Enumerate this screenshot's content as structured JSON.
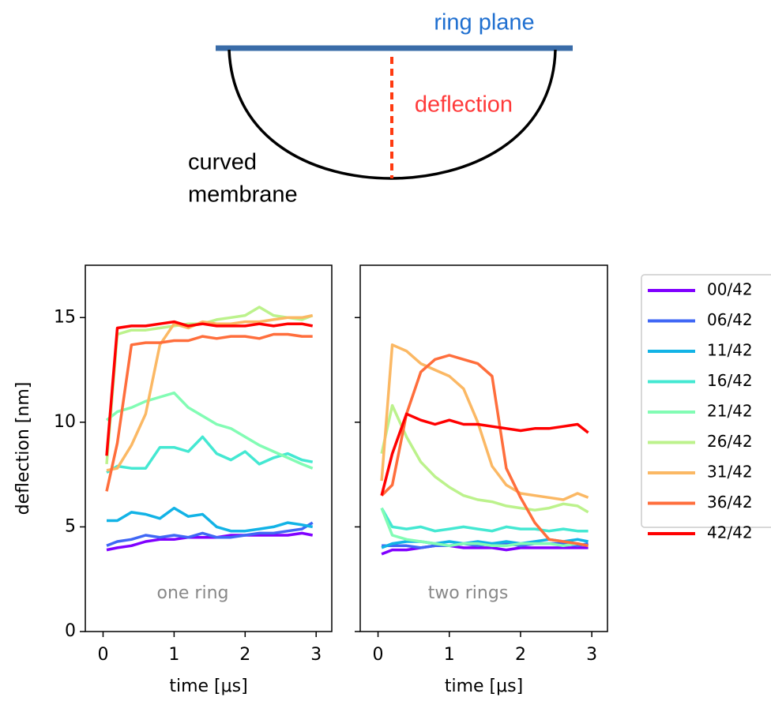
{
  "diagram": {
    "plane_label": "ring plane",
    "deflection_label": "deflection",
    "membrane_label": [
      "curved",
      "membrane"
    ]
  },
  "chart_data": [
    {
      "type": "line",
      "annotation": "one ring",
      "xlabel": "time [μs]",
      "ylabel": "deflection [nm]",
      "xlim": [
        -0.25,
        3.22
      ],
      "xticks": [
        0,
        1,
        2,
        3
      ],
      "ylim": [
        0,
        17.5
      ],
      "yticks": [
        0,
        5,
        10,
        15
      ],
      "legend": "outside-right",
      "x": [
        0.05,
        0.2,
        0.4,
        0.6,
        0.8,
        1.0,
        1.2,
        1.4,
        1.6,
        1.8,
        2.0,
        2.2,
        2.4,
        2.6,
        2.8,
        2.95
      ],
      "series": [
        {
          "name": "00/42",
          "color": "#8000ff",
          "values": [
            3.9,
            4.0,
            4.1,
            4.3,
            4.4,
            4.4,
            4.5,
            4.5,
            4.5,
            4.6,
            4.6,
            4.6,
            4.6,
            4.6,
            4.7,
            4.6
          ]
        },
        {
          "name": "06/42",
          "color": "#3f67f5",
          "values": [
            4.1,
            4.3,
            4.4,
            4.6,
            4.5,
            4.6,
            4.5,
            4.7,
            4.5,
            4.5,
            4.6,
            4.7,
            4.7,
            4.8,
            4.9,
            5.2
          ]
        },
        {
          "name": "11/42",
          "color": "#12b3e6",
          "values": [
            5.3,
            5.3,
            5.7,
            5.6,
            5.4,
            5.9,
            5.5,
            5.6,
            5.0,
            4.8,
            4.8,
            4.9,
            5.0,
            5.2,
            5.1,
            5.0
          ]
        },
        {
          "name": "16/42",
          "color": "#44e8d2",
          "values": [
            7.6,
            7.9,
            7.8,
            7.8,
            8.8,
            8.8,
            8.6,
            9.3,
            8.5,
            8.2,
            8.6,
            8.0,
            8.3,
            8.5,
            8.2,
            8.1
          ]
        },
        {
          "name": "21/42",
          "color": "#82fcb4",
          "values": [
            10.1,
            10.5,
            10.7,
            11.0,
            11.2,
            11.4,
            10.7,
            10.3,
            9.9,
            9.7,
            9.3,
            8.9,
            8.6,
            8.3,
            8.0,
            7.8
          ]
        },
        {
          "name": "26/42",
          "color": "#bcf28c",
          "values": [
            8.0,
            14.2,
            14.4,
            14.4,
            14.5,
            14.6,
            14.7,
            14.7,
            14.9,
            15.0,
            15.1,
            15.5,
            15.1,
            15.0,
            14.9,
            15.1
          ]
        },
        {
          "name": "31/42",
          "color": "#fbb864",
          "values": [
            7.7,
            7.8,
            8.9,
            10.4,
            13.7,
            14.7,
            14.5,
            14.8,
            14.7,
            14.7,
            14.8,
            14.8,
            14.9,
            15.0,
            15.0,
            15.1
          ]
        },
        {
          "name": "36/42",
          "color": "#ff6e3c",
          "values": [
            6.7,
            9.0,
            13.7,
            13.8,
            13.8,
            13.9,
            13.9,
            14.1,
            14.0,
            14.1,
            14.1,
            14.0,
            14.2,
            14.2,
            14.1,
            14.1
          ]
        },
        {
          "name": "42/42",
          "color": "#ff0000",
          "values": [
            8.4,
            14.5,
            14.6,
            14.6,
            14.7,
            14.8,
            14.6,
            14.7,
            14.6,
            14.6,
            14.6,
            14.7,
            14.6,
            14.7,
            14.7,
            14.6
          ]
        }
      ]
    },
    {
      "type": "line",
      "annotation": "two rings",
      "xlabel": "time [μs]",
      "xlim": [
        -0.25,
        3.22
      ],
      "xticks": [
        0,
        1,
        2,
        3
      ],
      "ylim": [
        0,
        17.5
      ],
      "x": [
        0.05,
        0.2,
        0.4,
        0.6,
        0.8,
        1.0,
        1.2,
        1.4,
        1.6,
        1.8,
        2.0,
        2.2,
        2.4,
        2.6,
        2.8,
        2.95
      ],
      "series": [
        {
          "color": "#8000ff",
          "values": [
            3.7,
            3.9,
            3.9,
            4.0,
            4.1,
            4.1,
            4.0,
            4.0,
            4.0,
            3.9,
            4.0,
            4.0,
            4.0,
            4.0,
            4.0,
            4.0
          ]
        },
        {
          "color": "#3f67f5",
          "values": [
            4.1,
            4.1,
            4.1,
            4.0,
            4.1,
            4.1,
            4.2,
            4.1,
            4.2,
            4.2,
            4.1,
            4.2,
            4.2,
            4.2,
            4.1,
            4.2
          ]
        },
        {
          "color": "#12b3e6",
          "values": [
            4.0,
            4.2,
            4.3,
            4.3,
            4.2,
            4.3,
            4.2,
            4.3,
            4.2,
            4.3,
            4.2,
            4.3,
            4.4,
            4.3,
            4.4,
            4.3
          ]
        },
        {
          "color": "#44e8d2",
          "values": [
            5.9,
            5.0,
            4.9,
            5.0,
            4.8,
            4.9,
            5.0,
            4.9,
            4.8,
            5.0,
            4.9,
            4.9,
            4.8,
            4.9,
            4.8,
            4.8
          ]
        },
        {
          "color": "#82fcb4",
          "values": [
            5.9,
            4.6,
            4.4,
            4.3,
            4.2,
            4.1,
            4.2,
            4.2,
            4.1,
            4.1,
            4.2,
            4.2,
            4.2,
            4.1,
            4.2,
            4.1
          ]
        },
        {
          "color": "#bcf28c",
          "values": [
            8.5,
            10.8,
            9.3,
            8.1,
            7.4,
            6.9,
            6.5,
            6.3,
            6.2,
            6.0,
            5.9,
            5.8,
            5.9,
            6.1,
            6.0,
            5.7
          ]
        },
        {
          "color": "#fbb864",
          "values": [
            7.2,
            13.7,
            13.4,
            12.8,
            12.5,
            12.2,
            11.6,
            10.0,
            7.9,
            7.0,
            6.6,
            6.5,
            6.4,
            6.3,
            6.6,
            6.4
          ]
        },
        {
          "color": "#ff6e3c",
          "values": [
            6.5,
            7.0,
            10.4,
            12.4,
            13.0,
            13.2,
            13.0,
            12.8,
            12.2,
            7.8,
            6.4,
            5.2,
            4.4,
            4.3,
            4.2,
            4.1
          ]
        },
        {
          "color": "#ff0000",
          "values": [
            6.5,
            8.5,
            10.4,
            10.1,
            9.9,
            10.1,
            9.9,
            9.9,
            9.8,
            9.7,
            9.6,
            9.7,
            9.7,
            9.8,
            9.9,
            9.5
          ]
        }
      ]
    }
  ]
}
